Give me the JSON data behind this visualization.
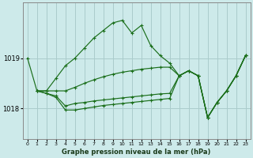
{
  "title": "Graphe pression niveau de la mer (hPa)",
  "bg_color": "#cdeaea",
  "grid_color": "#aacccc",
  "line_color": "#1a6e1a",
  "xlim": [
    -0.5,
    23.5
  ],
  "ylim": [
    1017.4,
    1020.1
  ],
  "yticks": [
    1018,
    1019
  ],
  "xticks": [
    0,
    1,
    2,
    3,
    4,
    5,
    6,
    7,
    8,
    9,
    10,
    11,
    12,
    13,
    14,
    15,
    16,
    17,
    18,
    19,
    20,
    21,
    22,
    23
  ],
  "series": [
    {
      "x": [
        0,
        1,
        2,
        3,
        4,
        5,
        6,
        7,
        8,
        9,
        10,
        11,
        12,
        13,
        14,
        15,
        16,
        17,
        18,
        19,
        20,
        21,
        22,
        23
      ],
      "y": [
        1019.0,
        1018.35,
        1018.35,
        1018.6,
        1018.85,
        1019.0,
        1019.2,
        1019.4,
        1019.55,
        1019.7,
        1019.75,
        1019.5,
        1019.65,
        1019.25,
        1019.05,
        1018.9,
        1018.65,
        1018.75,
        1018.65,
        1017.82,
        1018.12,
        1018.35,
        1018.65,
        1019.05
      ]
    },
    {
      "x": [
        1,
        2,
        3,
        4,
        5,
        6,
        7,
        8,
        9,
        10,
        11,
        12,
        13,
        14,
        15,
        16,
        17,
        18,
        19,
        20,
        21,
        22,
        23
      ],
      "y": [
        1018.35,
        1018.35,
        1018.35,
        1018.35,
        1018.42,
        1018.5,
        1018.57,
        1018.63,
        1018.68,
        1018.72,
        1018.75,
        1018.78,
        1018.8,
        1018.82,
        1018.82,
        1018.65,
        1018.75,
        1018.65,
        1017.82,
        1018.12,
        1018.35,
        1018.65,
        1019.05
      ]
    },
    {
      "x": [
        1,
        2,
        3,
        4,
        5,
        6,
        7,
        8,
        9,
        10,
        11,
        12,
        13,
        14,
        15,
        16,
        17,
        18,
        19,
        20,
        21,
        22,
        23
      ],
      "y": [
        1018.35,
        1018.3,
        1018.25,
        1018.05,
        1018.1,
        1018.12,
        1018.15,
        1018.17,
        1018.19,
        1018.21,
        1018.23,
        1018.25,
        1018.27,
        1018.29,
        1018.3,
        1018.65,
        1018.75,
        1018.65,
        1017.82,
        1018.12,
        1018.35,
        1018.65,
        1019.05
      ]
    },
    {
      "x": [
        1,
        2,
        3,
        4,
        5,
        6,
        7,
        8,
        9,
        10,
        11,
        12,
        13,
        14,
        15,
        16,
        17,
        18,
        19,
        20,
        21,
        22,
        23
      ],
      "y": [
        1018.35,
        1018.3,
        1018.22,
        1017.97,
        1017.97,
        1018.0,
        1018.03,
        1018.06,
        1018.08,
        1018.1,
        1018.12,
        1018.14,
        1018.16,
        1018.18,
        1018.2,
        1018.65,
        1018.75,
        1018.65,
        1017.82,
        1018.12,
        1018.35,
        1018.65,
        1019.05
      ]
    }
  ]
}
